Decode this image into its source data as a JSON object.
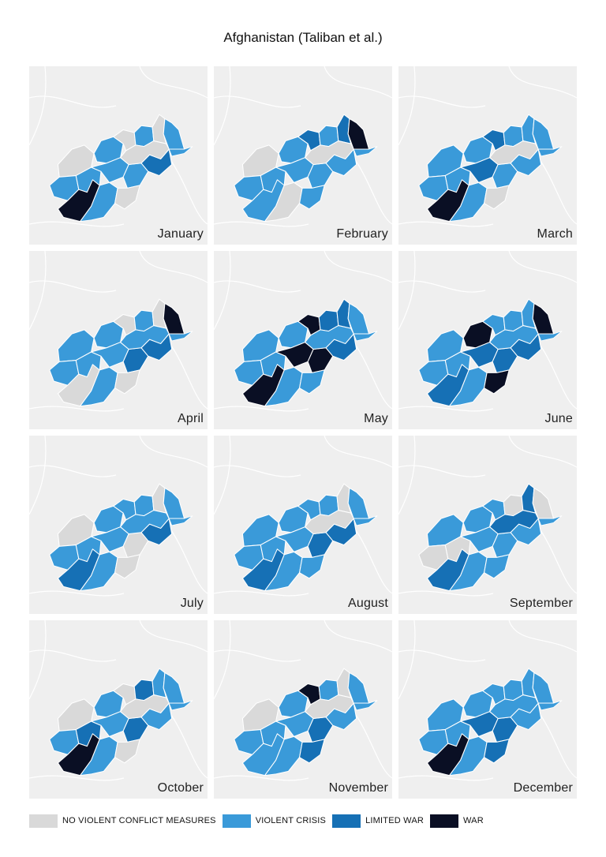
{
  "title": "Afghanistan (Taliban et al.)",
  "colors": {
    "none": "#d9d9d9",
    "crisis": "#3a9ad9",
    "limited": "#1670b5",
    "war": "#0a0f24",
    "background": "#efefef",
    "border": "#ffffff"
  },
  "legend": [
    {
      "level": "none",
      "label": "NO VIOLENT CONFLICT MEASURES"
    },
    {
      "level": "crisis",
      "label": "VIOLENT CRISIS"
    },
    {
      "level": "limited",
      "label": "LIMITED WAR"
    },
    {
      "level": "war",
      "label": "WAR"
    }
  ],
  "months": [
    {
      "label": "January",
      "regions": [
        "none",
        "crisis",
        "none",
        "crisis",
        "none",
        "crisis",
        "crisis",
        "crisis",
        "crisis",
        "war",
        "crisis",
        "crisis",
        "limited",
        "none",
        "none"
      ]
    },
    {
      "label": "February",
      "regions": [
        "none",
        "crisis",
        "limited",
        "crisis",
        "limited",
        "war",
        "crisis",
        "crisis",
        "crisis",
        "crisis",
        "none",
        "crisis",
        "crisis",
        "crisis",
        "none"
      ]
    },
    {
      "label": "March",
      "regions": [
        "crisis",
        "crisis",
        "limited",
        "crisis",
        "crisis",
        "crisis",
        "crisis",
        "crisis",
        "limited",
        "war",
        "crisis",
        "crisis",
        "crisis",
        "none",
        "none"
      ]
    },
    {
      "label": "April",
      "regions": [
        "crisis",
        "crisis",
        "none",
        "crisis",
        "none",
        "war",
        "crisis",
        "crisis",
        "crisis",
        "none",
        "crisis",
        "limited",
        "limited",
        "none",
        "crisis"
      ]
    },
    {
      "label": "May",
      "regions": [
        "crisis",
        "crisis",
        "war",
        "limited",
        "limited",
        "crisis",
        "crisis",
        "crisis",
        "war",
        "war",
        "crisis",
        "war",
        "limited",
        "crisis",
        "crisis"
      ]
    },
    {
      "label": "June",
      "regions": [
        "crisis",
        "war",
        "crisis",
        "crisis",
        "crisis",
        "war",
        "crisis",
        "crisis",
        "limited",
        "limited",
        "crisis",
        "limited",
        "limited",
        "war",
        "crisis"
      ]
    },
    {
      "label": "July",
      "regions": [
        "none",
        "crisis",
        "crisis",
        "crisis",
        "none",
        "crisis",
        "crisis",
        "crisis",
        "crisis",
        "limited",
        "crisis",
        "none",
        "limited",
        "none",
        "crisis"
      ]
    },
    {
      "label": "August",
      "regions": [
        "crisis",
        "crisis",
        "crisis",
        "crisis",
        "none",
        "crisis",
        "crisis",
        "crisis",
        "crisis",
        "limited",
        "crisis",
        "limited",
        "limited",
        "crisis",
        "none"
      ]
    },
    {
      "label": "September",
      "regions": [
        "crisis",
        "crisis",
        "crisis",
        "none",
        "limited",
        "none",
        "none",
        "none",
        "crisis",
        "limited",
        "crisis",
        "crisis",
        "crisis",
        "crisis",
        "limited"
      ]
    },
    {
      "label": "October",
      "regions": [
        "none",
        "crisis",
        "none",
        "limited",
        "crisis",
        "crisis",
        "crisis",
        "limited",
        "crisis",
        "war",
        "crisis",
        "limited",
        "crisis",
        "none",
        "none"
      ]
    },
    {
      "label": "November",
      "regions": [
        "none",
        "crisis",
        "war",
        "crisis",
        "none",
        "crisis",
        "crisis",
        "crisis",
        "crisis",
        "crisis",
        "crisis",
        "limited",
        "crisis",
        "limited",
        "none"
      ]
    },
    {
      "label": "December",
      "regions": [
        "crisis",
        "crisis",
        "crisis",
        "crisis",
        "crisis",
        "crisis",
        "crisis",
        "crisis",
        "limited",
        "war",
        "crisis",
        "limited",
        "crisis",
        "limited",
        "crisis"
      ]
    }
  ]
}
